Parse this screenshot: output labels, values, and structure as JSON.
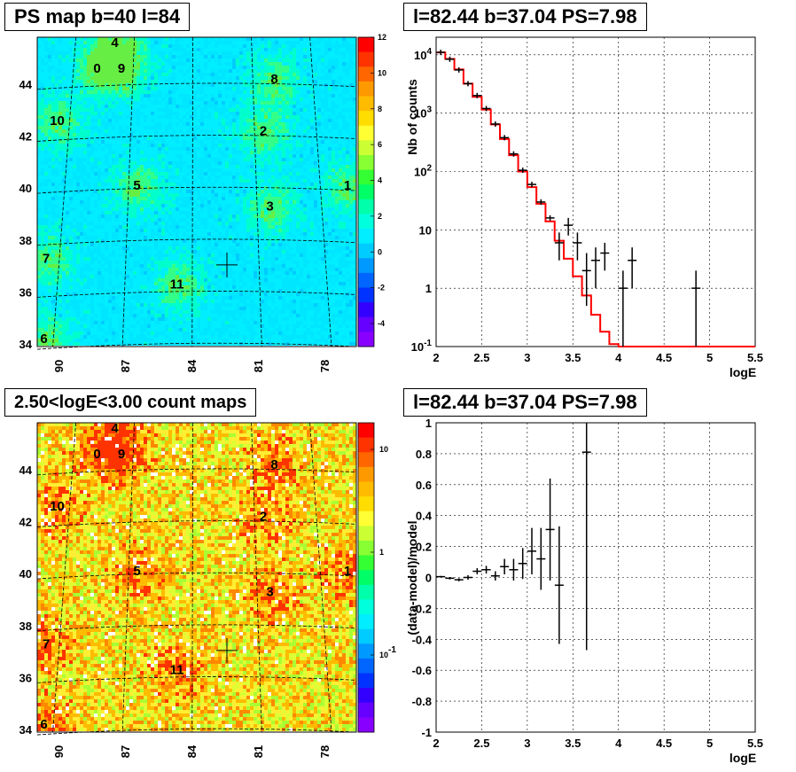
{
  "panels": {
    "tl_title": "PS map b=40 l=84",
    "tr_title": "l=82.44 b=37.04 PS=7.98",
    "bl_title": "2.50<logE<3.00 count maps",
    "br_title": "l=82.44 b=37.04 PS=7.98"
  },
  "colors": {
    "model_line": "#ff0000",
    "data": "#000000",
    "grid": "#000000"
  },
  "chart_data": [
    {
      "type": "heatmap",
      "title": "PS map b=40 l=84",
      "xlabel": "",
      "ylabel": "",
      "x_ticks": [
        "90",
        "87",
        "84",
        "81",
        "78"
      ],
      "y_ticks": [
        "34",
        "36",
        "38",
        "40",
        "42",
        "44"
      ],
      "colorbar": {
        "min": -5,
        "max": 12,
        "ticks": [
          "12",
          "10",
          "8",
          "6",
          "4",
          "2",
          "0",
          "-2",
          "-4"
        ]
      },
      "sources": [
        {
          "label": "0",
          "l": 88.3,
          "b": 44.6
        },
        {
          "label": "9",
          "l": 87.2,
          "b": 44.6
        },
        {
          "label": "4",
          "l": 87.5,
          "b": 45.6
        },
        {
          "label": "8",
          "l": 80.3,
          "b": 44.2
        },
        {
          "label": "10",
          "l": 90.1,
          "b": 42.6
        },
        {
          "label": "2",
          "l": 80.8,
          "b": 42.2
        },
        {
          "label": "5",
          "l": 86.5,
          "b": 40.1
        },
        {
          "label": "1",
          "l": 77.0,
          "b": 40.1
        },
        {
          "label": "3",
          "l": 80.5,
          "b": 39.3
        },
        {
          "label": "7",
          "l": 90.6,
          "b": 37.3
        },
        {
          "label": "11",
          "l": 84.7,
          "b": 36.3
        },
        {
          "label": "6",
          "l": 90.7,
          "b": 34.2
        }
      ],
      "marker": {
        "l": 82.44,
        "b": 37.04
      }
    },
    {
      "type": "line",
      "title": "l=82.44 b=37.04 PS=7.98",
      "xlabel": "logE",
      "ylabel": "Nb of counts",
      "xlim": [
        2,
        5.5
      ],
      "ylim": [
        0.1,
        20000
      ],
      "yscale": "log",
      "x_ticks": [
        "2",
        "2.5",
        "3",
        "3.5",
        "4",
        "4.5",
        "5",
        "5.5"
      ],
      "y_ticks": [
        "10^{-1}",
        "1",
        "10",
        "10^{2}",
        "10^{3}",
        "10^{4}"
      ],
      "series": [
        {
          "kind": "model_step",
          "edges": [
            2.0,
            2.1,
            2.2,
            2.3,
            2.4,
            2.5,
            2.6,
            2.7,
            2.8,
            2.9,
            3.0,
            3.1,
            3.2,
            3.3,
            3.4,
            3.5,
            3.6,
            3.7,
            3.8,
            3.9,
            4.0,
            5.5
          ],
          "values": [
            11000,
            8500,
            5600,
            3200,
            1900,
            1150,
            640,
            360,
            190,
            100,
            54,
            28,
            14,
            6.5,
            3.2,
            1.6,
            0.75,
            0.35,
            0.18,
            0.11,
            0.1
          ]
        },
        {
          "kind": "data_points",
          "x": [
            2.05,
            2.15,
            2.25,
            2.35,
            2.45,
            2.55,
            2.65,
            2.75,
            2.85,
            2.95,
            3.05,
            3.15,
            3.25,
            3.35,
            3.45,
            3.55,
            3.65,
            3.75,
            3.85,
            4.05,
            4.15,
            4.85
          ],
          "y": [
            11000,
            8400,
            5500,
            3200,
            2000,
            1200,
            650,
            380,
            200,
            105,
            60,
            30,
            16,
            6,
            12,
            6,
            2,
            3,
            4,
            1,
            3,
            1
          ],
          "err_low": [
            0,
            0,
            0,
            0,
            0,
            0,
            0,
            0,
            0,
            0,
            0,
            0,
            0,
            3,
            4,
            3,
            1.5,
            2,
            2,
            0.9,
            2,
            0.9
          ],
          "err_high": [
            0,
            0,
            0,
            0,
            0,
            0,
            0,
            0,
            0,
            0,
            0,
            0,
            0,
            3,
            4,
            3,
            2,
            2,
            2,
            1,
            2,
            1
          ]
        }
      ]
    },
    {
      "type": "heatmap",
      "title": "2.50<logE<3.00 count maps",
      "xlabel": "",
      "ylabel": "",
      "x_ticks": [
        "90",
        "87",
        "84",
        "81",
        "78"
      ],
      "y_ticks": [
        "34",
        "36",
        "38",
        "40",
        "42",
        "44"
      ],
      "colorbar": {
        "scale": "log",
        "ticks": [
          "10",
          "1",
          "10^{-1}"
        ]
      },
      "sources": [
        {
          "label": "0",
          "l": 88.3,
          "b": 44.6
        },
        {
          "label": "9",
          "l": 87.2,
          "b": 44.6
        },
        {
          "label": "4",
          "l": 87.5,
          "b": 45.6
        },
        {
          "label": "8",
          "l": 80.3,
          "b": 44.2
        },
        {
          "label": "10",
          "l": 90.1,
          "b": 42.6
        },
        {
          "label": "2",
          "l": 80.8,
          "b": 42.2
        },
        {
          "label": "5",
          "l": 86.5,
          "b": 40.1
        },
        {
          "label": "1",
          "l": 77.0,
          "b": 40.1
        },
        {
          "label": "3",
          "l": 80.5,
          "b": 39.3
        },
        {
          "label": "7",
          "l": 90.6,
          "b": 37.3
        },
        {
          "label": "11",
          "l": 84.7,
          "b": 36.3
        },
        {
          "label": "6",
          "l": 90.7,
          "b": 34.2
        }
      ],
      "marker": {
        "l": 82.44,
        "b": 37.04
      }
    },
    {
      "type": "scatter",
      "title": "l=82.44 b=37.04 PS=7.98",
      "xlabel": "logE",
      "ylabel": "(data-model)/model",
      "xlim": [
        2,
        5.5
      ],
      "ylim": [
        -1,
        1
      ],
      "x_ticks": [
        "2",
        "2.5",
        "3",
        "3.5",
        "4",
        "4.5",
        "5",
        "5.5"
      ],
      "y_ticks": [
        "-1",
        "-0.8",
        "-0.6",
        "-0.4",
        "-0.2",
        "0",
        "0.2",
        "0.4",
        "0.6",
        "0.8",
        "1"
      ],
      "series": [
        {
          "kind": "data_points",
          "x": [
            2.05,
            2.15,
            2.25,
            2.35,
            2.45,
            2.55,
            2.65,
            2.75,
            2.85,
            2.95,
            3.05,
            3.15,
            3.25,
            3.35,
            3.65
          ],
          "y": [
            0.005,
            -0.005,
            -0.015,
            0.0,
            0.04,
            0.05,
            0.01,
            0.07,
            0.05,
            0.09,
            0.17,
            0.12,
            0.31,
            -0.05,
            0.81
          ],
          "err": [
            0.005,
            0.008,
            0.01,
            0.015,
            0.02,
            0.025,
            0.03,
            0.05,
            0.07,
            0.1,
            0.15,
            0.2,
            0.33,
            0.38,
            1.28
          ]
        }
      ]
    }
  ]
}
